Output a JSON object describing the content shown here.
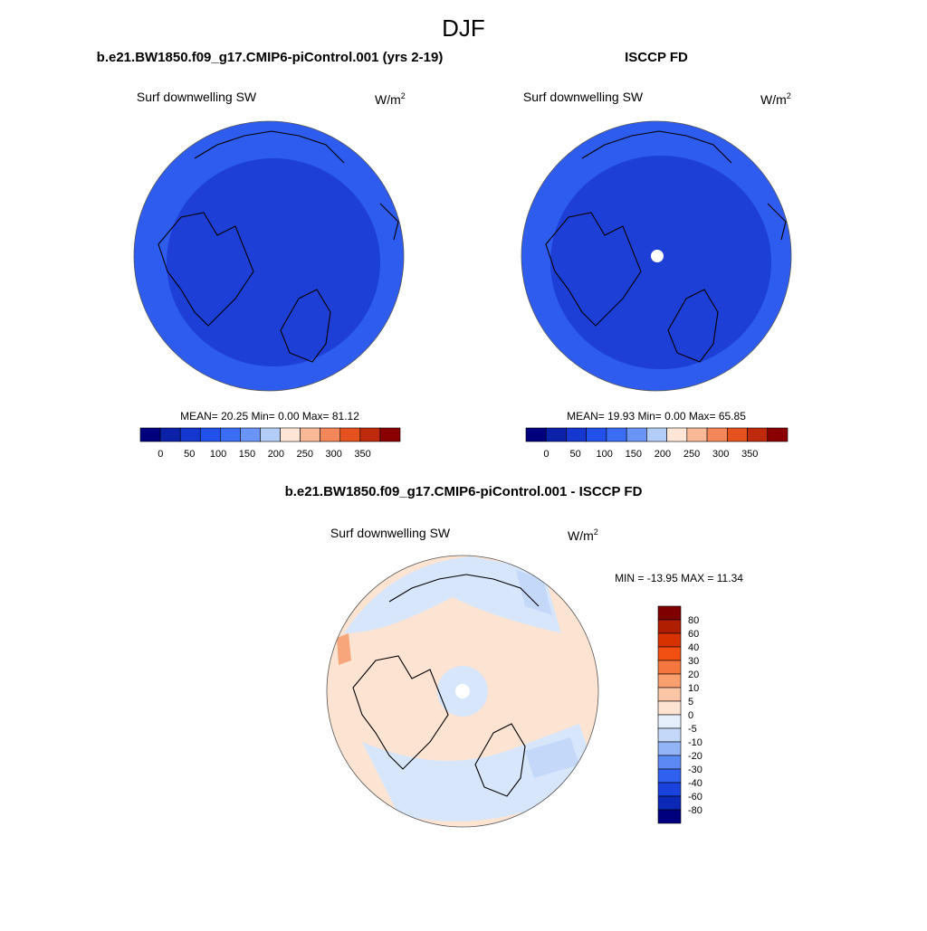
{
  "title": "DJF",
  "panels": [
    {
      "title": "b.e21.BW1850.f09_g17.CMIP6-piControl.001 (yrs 2-19)",
      "variable": "Surf downwelling SW",
      "units": {
        "base": "W/m",
        "sup": "2"
      },
      "stats": "MEAN=  20.25  Min=   0.00  Max=  81.12",
      "colorbar": {
        "orientation": "horizontal",
        "levels": [
          0,
          50,
          100,
          150,
          200,
          250,
          300,
          350
        ],
        "colors": [
          "#00007f",
          "#0b22a8",
          "#1537d0",
          "#2150ea",
          "#3a6cf4",
          "#6a94f6",
          "#b3cdf8",
          "#fde6d6",
          "#f9b896",
          "#f4875a",
          "#e6521f",
          "#c02a0c",
          "#8b0000"
        ]
      }
    },
    {
      "title": "ISCCP FD",
      "variable": "Surf downwelling SW",
      "units": {
        "base": "W/m",
        "sup": "2"
      },
      "stats": "MEAN=  19.93  Min=   0.00  Max=  65.85",
      "colorbar": {
        "orientation": "horizontal",
        "levels": [
          0,
          50,
          100,
          150,
          200,
          250,
          300,
          350
        ],
        "colors": [
          "#00007f",
          "#0b22a8",
          "#1537d0",
          "#2150ea",
          "#3a6cf4",
          "#6a94f6",
          "#b3cdf8",
          "#fde6d6",
          "#f9b896",
          "#f4875a",
          "#e6521f",
          "#c02a0c",
          "#8b0000"
        ]
      }
    },
    {
      "title": "b.e21.BW1850.f09_g17.CMIP6-piControl.001 - ISCCP FD",
      "variable": "Surf downwelling SW",
      "units": {
        "base": "W/m",
        "sup": "2"
      },
      "stats": "MIN = -13.95 MAX =  11.34",
      "colorbar": {
        "orientation": "vertical",
        "levels": [
          80,
          60,
          40,
          30,
          20,
          10,
          5,
          0,
          -5,
          -10,
          -20,
          -30,
          -40,
          -60,
          -80
        ],
        "colors": [
          "#7f0000",
          "#b01e00",
          "#d83200",
          "#f24f12",
          "#f6773e",
          "#f9a06e",
          "#fbc6a6",
          "#fde4d2",
          "#e6effc",
          "#c4d8fa",
          "#93b4f7",
          "#5c8af4",
          "#3060f0",
          "#1a42dc",
          "#0c28b6",
          "#00007f"
        ]
      }
    }
  ]
}
